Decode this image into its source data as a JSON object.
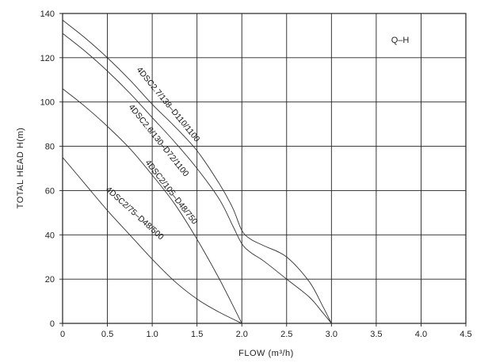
{
  "chart_data": {
    "type": "line",
    "title": "Q–H",
    "xlabel": "FLOW (m³/h)",
    "ylabel": "TOTAL HEAD  H(m)",
    "xlim": [
      0,
      4.5
    ],
    "ylim": [
      0,
      140
    ],
    "x_ticks": [
      "0",
      "0.5",
      "1.0",
      "1.5",
      "2.0",
      "2.5",
      "3.0",
      "3.5",
      "4.0",
      "4.5"
    ],
    "y_ticks": [
      "0",
      "20",
      "40",
      "60",
      "80",
      "100",
      "120",
      "140"
    ],
    "grid": true,
    "series": [
      {
        "name": "4DSC2.7/138–D110/1100",
        "x": [
          0,
          0.25,
          0.5,
          0.75,
          1.0,
          1.25,
          1.5,
          1.75,
          1.9,
          2.0,
          2.1,
          2.25,
          2.5,
          2.75,
          2.9,
          3.0
        ],
        "y": [
          137,
          129,
          120,
          110,
          99,
          89,
          78,
          63,
          52,
          42,
          38,
          35,
          30,
          19,
          8,
          0
        ]
      },
      {
        "name": "4DSC2.6/130–D72/1100",
        "x": [
          0,
          0.25,
          0.5,
          0.75,
          1.0,
          1.25,
          1.5,
          1.75,
          1.9,
          2.0,
          2.1,
          2.25,
          2.5,
          2.75,
          2.9,
          3.0
        ],
        "y": [
          131,
          123,
          114,
          104,
          93,
          82,
          70,
          56,
          44,
          36,
          32,
          28,
          20,
          12,
          5,
          0
        ]
      },
      {
        "name": "4DSC2/105–D48/750",
        "x": [
          0,
          0.25,
          0.5,
          0.75,
          1.0,
          1.25,
          1.5,
          1.75,
          2.0
        ],
        "y": [
          106,
          98,
          89,
          79,
          67,
          54,
          38,
          20,
          0
        ]
      },
      {
        "name": "4DSC2/75–D48/500",
        "x": [
          0,
          0.25,
          0.5,
          0.75,
          1.0,
          1.25,
          1.5,
          1.75,
          2.0
        ],
        "y": [
          75,
          63,
          51,
          40,
          29,
          19,
          11,
          5,
          0
        ]
      }
    ]
  }
}
